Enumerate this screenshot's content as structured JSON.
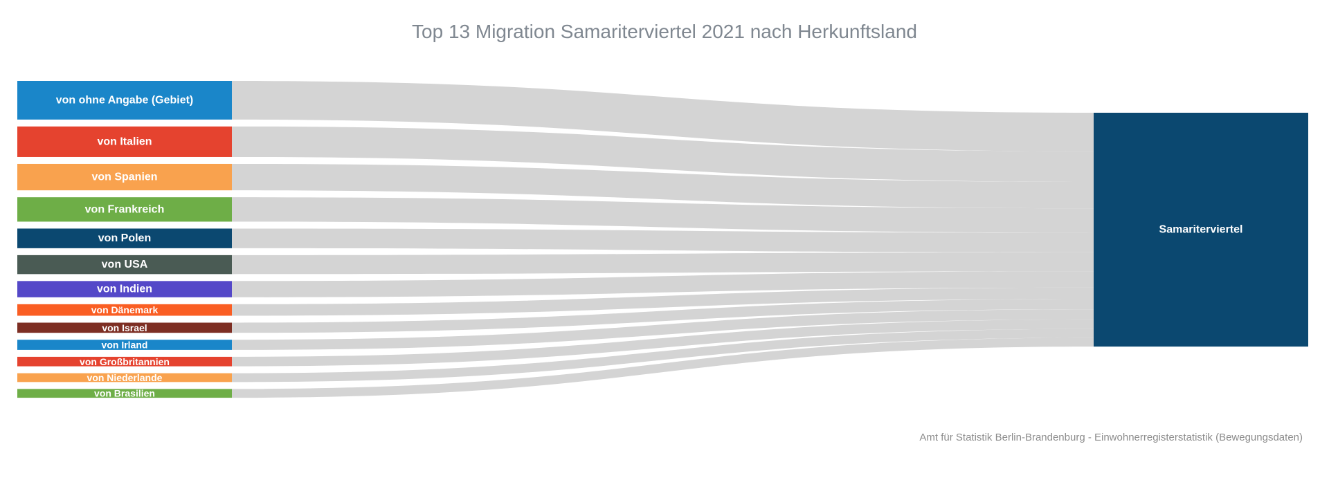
{
  "chart_data": {
    "type": "sankey",
    "title": "Top 13 Migration Samariterviertel 2021 nach Herkunftsland",
    "source": "Amt für Statistik Berlin-Brandenburg - Einwohnerregisterstatistik (Bewegungsdaten)",
    "target": {
      "label": "Samariterviertel",
      "color": "#0b4870"
    },
    "link_color": "#d4d4d4",
    "nodes": [
      {
        "label": "von ohne Angabe (Gebiet)",
        "value": 57,
        "color": "#1a86c9"
      },
      {
        "label": "von Italien",
        "value": 45,
        "color": "#e5432f"
      },
      {
        "label": "von Spanien",
        "value": 39,
        "color": "#f9a24e"
      },
      {
        "label": "von Frankreich",
        "value": 36,
        "color": "#6eae47"
      },
      {
        "label": "von Polen",
        "value": 29,
        "color": "#0b4870"
      },
      {
        "label": "von USA",
        "value": 28,
        "color": "#4a5b54"
      },
      {
        "label": "von Indien",
        "value": 24,
        "color": "#5448c8"
      },
      {
        "label": "von Dänemark",
        "value": 17,
        "color": "#fa5e23"
      },
      {
        "label": "von Israel",
        "value": 15,
        "color": "#7d2e23"
      },
      {
        "label": "von Irland",
        "value": 15,
        "color": "#1a86c9"
      },
      {
        "label": "von Großbritannien",
        "value": 14,
        "color": "#e5432f"
      },
      {
        "label": "von Niederlande",
        "value": 13,
        "color": "#f9a24e"
      },
      {
        "label": "von Brasilien",
        "value": 13,
        "color": "#6eae47"
      }
    ]
  }
}
